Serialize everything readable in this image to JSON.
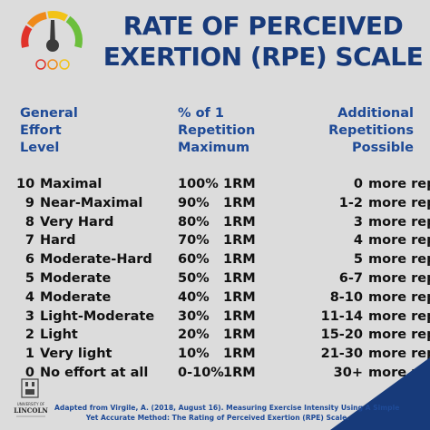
{
  "title": {
    "line1": "RATE OF PERCEIVED",
    "line2": "EXERTION (RPE) SCALE"
  },
  "headers": {
    "left": [
      "General",
      "Effort",
      "Level"
    ],
    "middle": [
      "% of 1",
      "Repetition",
      "Maximum"
    ],
    "right": [
      "Additional",
      "Repetitions",
      "Possible"
    ]
  },
  "rows": [
    {
      "level": "10",
      "name": "Maximal",
      "pct": "100%",
      "rm": "1RM",
      "reps": "0",
      "more": "more reps"
    },
    {
      "level": "9",
      "name": "Near-Maximal",
      "pct": "90%",
      "rm": "1RM",
      "reps": "1-2",
      "more": "more reps"
    },
    {
      "level": "8",
      "name": "Very Hard",
      "pct": "80%",
      "rm": "1RM",
      "reps": "3",
      "more": "more reps"
    },
    {
      "level": "7",
      "name": "Hard",
      "pct": "70%",
      "rm": "1RM",
      "reps": "4",
      "more": "more reps"
    },
    {
      "level": "6",
      "name": "Moderate-Hard",
      "pct": "60%",
      "rm": "1RM",
      "reps": "5",
      "more": "more reps"
    },
    {
      "level": "5",
      "name": "Moderate",
      "pct": "50%",
      "rm": "1RM",
      "reps": "6-7",
      "more": "more reps"
    },
    {
      "level": "4",
      "name": "Moderate",
      "pct": "40%",
      "rm": "1RM",
      "reps": "8-10",
      "more": "more reps"
    },
    {
      "level": "3",
      "name": "Light-Moderate",
      "pct": "30%",
      "rm": "1RM",
      "reps": "11-14",
      "more": "more reps"
    },
    {
      "level": "2",
      "name": "Light",
      "pct": "20%",
      "rm": "1RM",
      "reps": "15-20",
      "more": "more reps"
    },
    {
      "level": "1",
      "name": "Very light",
      "pct": "10%",
      "rm": "1RM",
      "reps": "21-30",
      "more": "more reps"
    },
    {
      "level": "0",
      "name": "No effort at all",
      "pct": "0-10%",
      "rm": "1RM",
      "reps": "30+",
      "more": "more reps"
    }
  ],
  "footer": {
    "line1": "Adapted from Virgile, A. (2018, August 16). Measuring Exercise Intensity Using A Simple",
    "line2": "Yet Accurate Method: The Rating of Perceived Exertion (RPE) Scale."
  },
  "logo": {
    "line1": "UNIVERSITY OF",
    "line2": "LINCOLN"
  },
  "icons": {
    "gauge": "exertion-gauge-icon",
    "logo": "university-crest-icon"
  },
  "colors": {
    "background": "#dcdcdc",
    "title": "#173a7a",
    "header": "#1e4a97",
    "corner": "#173a7a",
    "gauge_green": "#6cbf3c",
    "gauge_yellow": "#f2c318",
    "gauge_orange": "#ef8a1a",
    "gauge_red": "#e0322a"
  }
}
